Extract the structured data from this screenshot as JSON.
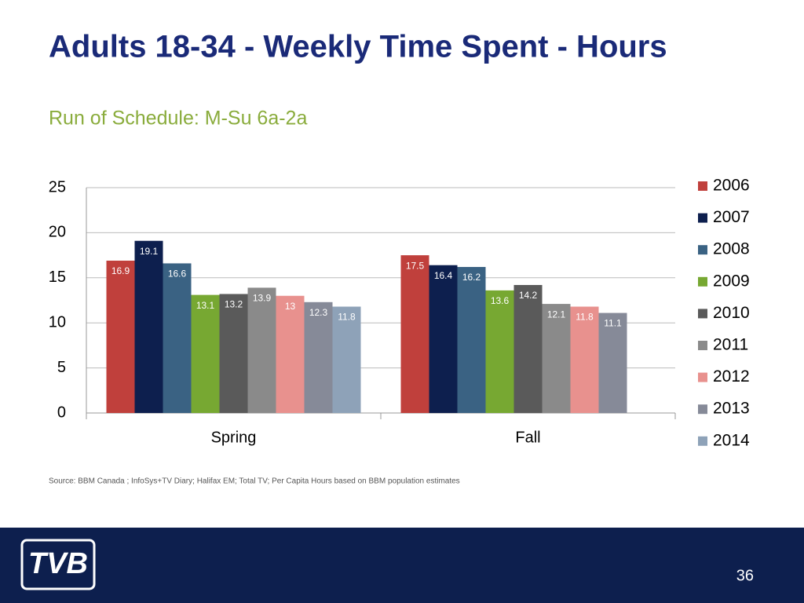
{
  "title": "Adults 18-34 - Weekly Time Spent - Hours",
  "subtitle": "Run of Schedule: M-Su 6a-2a",
  "source": "Source: BBM Canada ; InfoSys+TV Diary; Halifax EM; Total TV; Per Capita Hours based on BBM population estimates",
  "page_number": "36",
  "logo_text": "TVB",
  "chart_data": {
    "type": "bar",
    "categories": [
      "Spring",
      "Fall"
    ],
    "series": [
      {
        "name": "2006",
        "color": "#c0403c",
        "values": [
          16.9,
          17.5
        ]
      },
      {
        "name": "2007",
        "color": "#0d1f4e",
        "values": [
          19.1,
          16.4
        ]
      },
      {
        "name": "2008",
        "color": "#3a6283",
        "values": [
          16.6,
          16.2
        ]
      },
      {
        "name": "2009",
        "color": "#77a832",
        "values": [
          13.1,
          13.6
        ]
      },
      {
        "name": "2010",
        "color": "#5a5a5a",
        "values": [
          13.2,
          14.2
        ]
      },
      {
        "name": "2011",
        "color": "#8a8a8a",
        "values": [
          13.9,
          12.1
        ]
      },
      {
        "name": "2012",
        "color": "#e8918e",
        "values": [
          13.0,
          11.8
        ]
      },
      {
        "name": "2013",
        "color": "#868a98",
        "values": [
          12.3,
          11.1
        ]
      },
      {
        "name": "2014",
        "color": "#8ea2b8",
        "values": [
          11.8,
          null
        ]
      }
    ],
    "ylim": [
      0,
      25
    ],
    "yticks": [
      0,
      5,
      10,
      15,
      20,
      25
    ],
    "grid": true,
    "legend": "right"
  }
}
